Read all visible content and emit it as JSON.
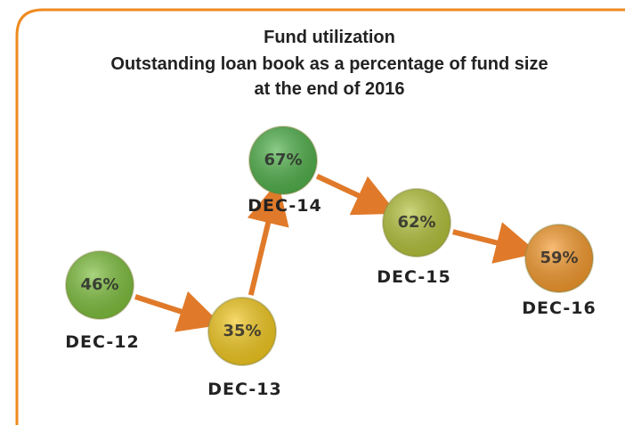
{
  "chart_data": {
    "type": "bubble-path",
    "title": "Fund utilization",
    "subtitle": [
      "Outstanding loan book as a percentage of fund size",
      "at the end of 2016"
    ],
    "categories": [
      "DEC-12",
      "DEC-13",
      "DEC-14",
      "DEC-15",
      "DEC-16"
    ],
    "values": [
      46,
      35,
      67,
      62,
      59
    ],
    "value_labels": [
      "46%",
      "35%",
      "67%",
      "62%",
      "59%"
    ],
    "colors": [
      "#7dbe3c",
      "#f2c81e",
      "#4fb04a",
      "#b3c23a",
      "#f4992c"
    ]
  }
}
